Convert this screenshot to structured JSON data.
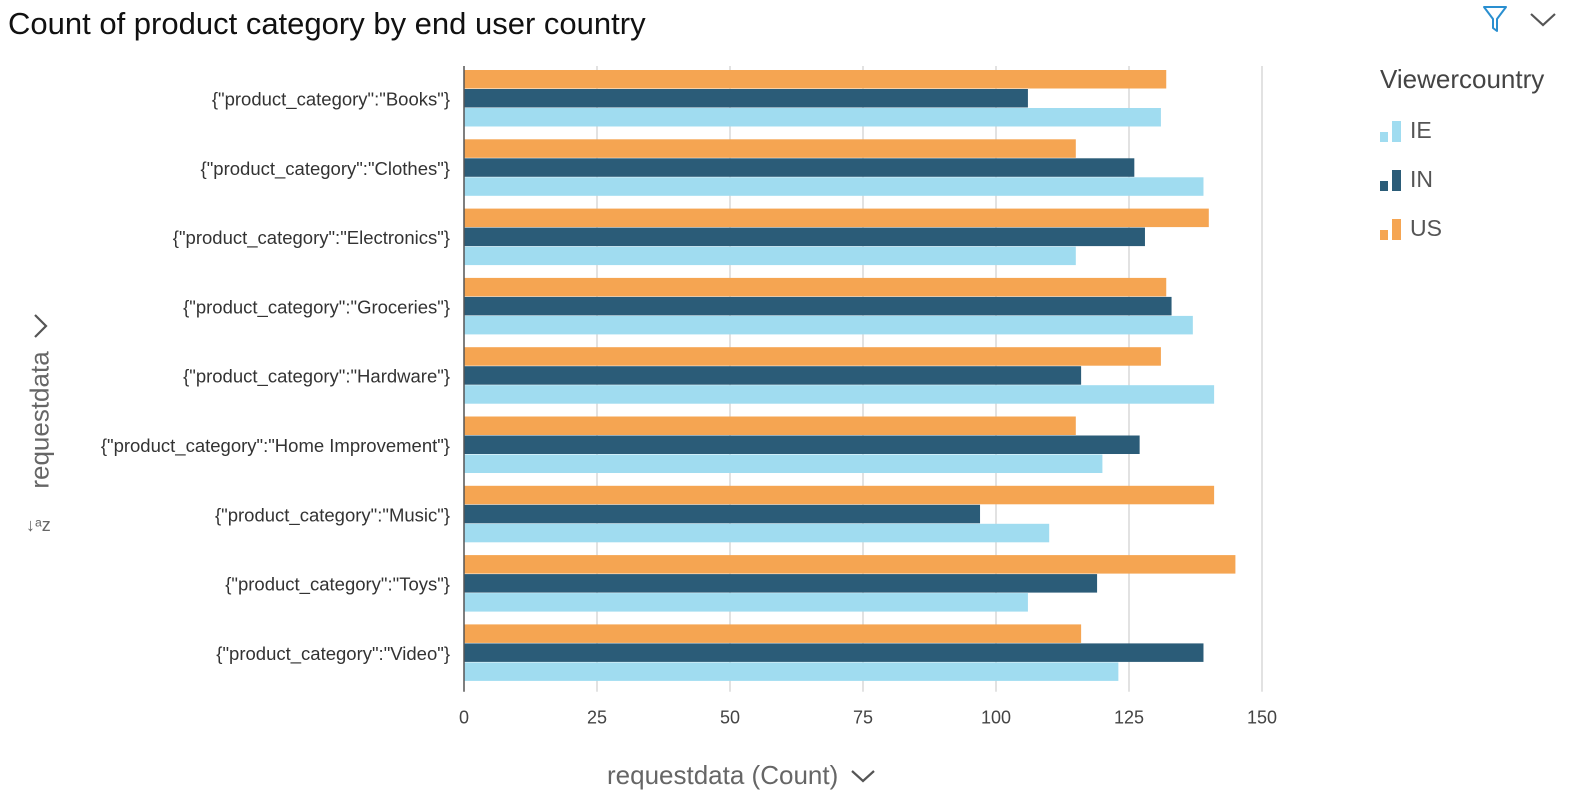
{
  "header": {
    "title": "Count of product category by end user country"
  },
  "icons": {
    "filter": "filter-icon",
    "menu": "chevron-down-icon"
  },
  "legend": {
    "title": "Viewercountry",
    "items": [
      {
        "label": "IE",
        "color": "#a0dcf0"
      },
      {
        "label": "IN",
        "color": "#2b5c78"
      },
      {
        "label": "US",
        "color": "#f5a552"
      }
    ]
  },
  "axes": {
    "y_title": "requestdata",
    "x_title": "requestdata (Count)",
    "sort_glyph": "↓ᵃz"
  },
  "chart_data": {
    "type": "bar",
    "orientation": "horizontal",
    "title": "Count of product category by end user country",
    "xlabel": "requestdata (Count)",
    "ylabel": "requestdata",
    "xlim": [
      0,
      150
    ],
    "xticks": [
      0,
      25,
      50,
      75,
      100,
      125,
      150
    ],
    "grid": true,
    "legend_position": "right",
    "categories": [
      "{\"product_category\":\"Books\"}",
      "{\"product_category\":\"Clothes\"}",
      "{\"product_category\":\"Electronics\"}",
      "{\"product_category\":\"Groceries\"}",
      "{\"product_category\":\"Hardware\"}",
      "{\"product_category\":\"Home Improvement\"}",
      "{\"product_category\":\"Music\"}",
      "{\"product_category\":\"Toys\"}",
      "{\"product_category\":\"Video\"}"
    ],
    "series": [
      {
        "name": "US",
        "color": "#f5a552",
        "values": [
          132,
          115,
          140,
          132,
          131,
          115,
          141,
          145,
          116
        ]
      },
      {
        "name": "IN",
        "color": "#2b5c78",
        "values": [
          106,
          126,
          128,
          133,
          116,
          127,
          97,
          119,
          139
        ]
      },
      {
        "name": "IE",
        "color": "#a0dcf0",
        "values": [
          131,
          139,
          115,
          137,
          141,
          120,
          110,
          106,
          123
        ]
      }
    ]
  }
}
